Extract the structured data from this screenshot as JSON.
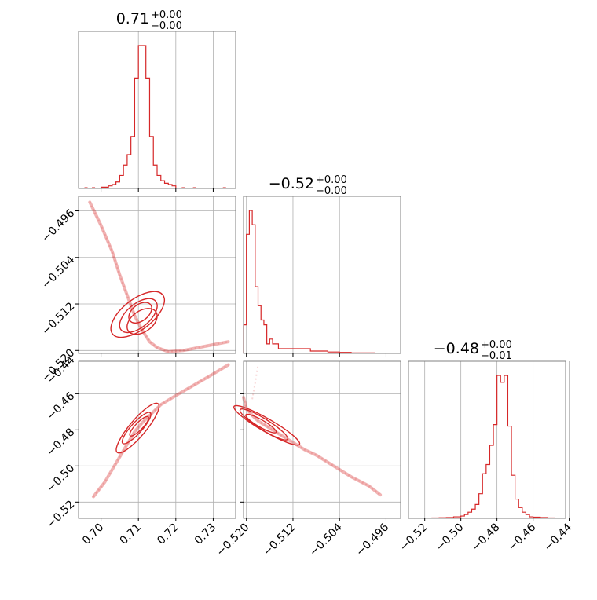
{
  "chart_data": {
    "type": "corner",
    "parameters": [
      {
        "title": {
          "value": "0.71",
          "plus": "+0.00",
          "minus": "−0.00"
        },
        "range": [
          0.694,
          0.736
        ],
        "ticks": [
          0.7,
          0.71,
          0.72,
          0.73
        ],
        "tick_labels": [
          "0.70",
          "0.71",
          "0.72",
          "0.73"
        ]
      },
      {
        "title": {
          "value": "−0.52",
          "plus": "+0.00",
          "minus": "−0.00"
        },
        "range": [
          -0.5205,
          -0.4935
        ],
        "ticks": [
          -0.52,
          -0.512,
          -0.504,
          -0.496
        ],
        "tick_labels": [
          "−0.520",
          "−0.512",
          "−0.504",
          "−0.496"
        ]
      },
      {
        "title": {
          "value": "−0.48",
          "plus": "+0.00",
          "minus": "−0.01"
        },
        "range": [
          -0.529,
          -0.442
        ],
        "ticks": [
          -0.52,
          -0.5,
          -0.48,
          -0.46,
          -0.44
        ],
        "tick_labels": [
          "−0.52",
          "−0.50",
          "−0.48",
          "−0.46",
          "−0.44"
        ]
      }
    ],
    "row_tick_labels": {
      "1": [
        "−0.496",
        "−0.504",
        "−0.512",
        "−0.520"
      ],
      "2": [
        "−0.44",
        "−0.46",
        "−0.48",
        "−0.50",
        "−0.52"
      ]
    },
    "histograms": [
      {
        "bins": [
          0.7,
          0.701,
          0.702,
          0.703,
          0.704,
          0.705,
          0.706,
          0.707,
          0.708,
          0.709,
          0.71,
          0.711,
          0.712,
          0.713,
          0.714,
          0.715,
          0.716,
          0.717,
          0.718,
          0.719,
          0.72
        ],
        "counts": [
          1,
          1,
          2,
          3,
          5,
          10,
          18,
          26,
          40,
          85,
          110,
          110,
          85,
          40,
          18,
          10,
          6,
          4,
          3,
          2
        ],
        "outliers": [
          0.696,
          0.698,
          0.722,
          0.725,
          0.733
        ]
      },
      {
        "bins": [
          -0.5205,
          -0.52,
          -0.5195,
          -0.519,
          -0.5185,
          -0.518,
          -0.5175,
          -0.517,
          -0.5165,
          -0.516,
          -0.5155,
          -0.515,
          -0.5145,
          -0.514,
          -0.5135,
          -0.513,
          -0.5125,
          -0.512,
          -0.5115,
          -0.511,
          -0.5105,
          -0.51,
          -0.509,
          -0.508,
          -0.507,
          -0.506,
          -0.505,
          -0.504,
          -0.502,
          -0.5,
          -0.498
        ],
        "counts": [
          6,
          25,
          30,
          27,
          14,
          10,
          7,
          6,
          2,
          3,
          2,
          2,
          1,
          1,
          1,
          1,
          1,
          1,
          1,
          1,
          1,
          1,
          0.5,
          0.5,
          0.5,
          0.3,
          0.3,
          0.2,
          0.1,
          0.1
        ]
      },
      {
        "bins": [
          -0.52,
          -0.516,
          -0.512,
          -0.508,
          -0.504,
          -0.5,
          -0.498,
          -0.496,
          -0.494,
          -0.492,
          -0.49,
          -0.488,
          -0.486,
          -0.484,
          -0.482,
          -0.48,
          -0.478,
          -0.476,
          -0.474,
          -0.472,
          -0.47,
          -0.468,
          -0.466,
          -0.464,
          -0.462,
          -0.46,
          -0.456,
          -0.452,
          -0.448,
          -0.444
        ],
        "counts": [
          0.3,
          0.5,
          0.8,
          1,
          2,
          3,
          5,
          8,
          12,
          18,
          32,
          58,
          70,
          95,
          122,
          186,
          177,
          186,
          120,
          56,
          25,
          14,
          8,
          5,
          2,
          1.5,
          1,
          0.5,
          0.3
        ]
      }
    ],
    "pair_curves": {
      "1_0": {
        "x": [
          0.697,
          0.7,
          0.703,
          0.705,
          0.707,
          0.709,
          0.711,
          0.713,
          0.715,
          0.718,
          0.722,
          0.726,
          0.73,
          0.734
        ],
        "y": [
          -0.4945,
          -0.4985,
          -0.503,
          -0.507,
          -0.5105,
          -0.514,
          -0.5165,
          -0.5185,
          -0.5195,
          -0.5202,
          -0.52,
          -0.5195,
          -0.519,
          -0.5185
        ]
      },
      "2_0": {
        "x": [
          0.698,
          0.701,
          0.703,
          0.705,
          0.707,
          0.709,
          0.711,
          0.713,
          0.716,
          0.72,
          0.725,
          0.73,
          0.734
        ],
        "y": [
          -0.517,
          -0.509,
          -0.502,
          -0.495,
          -0.488,
          -0.481,
          -0.476,
          -0.472,
          -0.466,
          -0.461,
          -0.455,
          -0.449,
          -0.444
        ]
      },
      "2_1": {
        "x": [
          -0.5205,
          -0.52,
          -0.519,
          -0.518,
          -0.516,
          -0.514,
          -0.512,
          -0.51,
          -0.508,
          -0.505,
          -0.502,
          -0.499,
          -0.497
        ],
        "y": [
          -0.462,
          -0.468,
          -0.472,
          -0.475,
          -0.479,
          -0.483,
          -0.487,
          -0.491,
          -0.494,
          -0.5,
          -0.506,
          -0.511,
          -0.516
        ]
      },
      "2_1_tail": {
        "x": [
          -0.519,
          -0.5185,
          -0.518
        ],
        "y": [
          -0.463,
          -0.454,
          -0.444
        ]
      }
    },
    "contours": {
      "1_0": [
        {
          "cx": 0.7105,
          "cy": -0.5135,
          "rx": 0.0035,
          "ry": 0.0014,
          "rot": -38
        },
        {
          "cx": 0.71,
          "cy": -0.514,
          "rx": 0.006,
          "ry": 0.002,
          "rot": -40
        },
        {
          "cx": 0.7098,
          "cy": -0.5138,
          "rx": 0.0085,
          "ry": 0.0026,
          "rot": -38
        },
        {
          "cx": 0.711,
          "cy": -0.515,
          "rx": 0.0045,
          "ry": 0.0018,
          "rot": -35
        }
      ],
      "2_0": [
        {
          "cx": 0.7095,
          "cy": -0.479,
          "rx": 0.0055,
          "ry": 0.003,
          "rot": -48
        },
        {
          "cx": 0.7098,
          "cy": -0.479,
          "rx": 0.0085,
          "ry": 0.0045,
          "rot": -50
        },
        {
          "cx": 0.7102,
          "cy": -0.478,
          "rx": 0.0035,
          "ry": 0.002,
          "rot": -46
        }
      ],
      "2_1": [
        {
          "cx": -0.5175,
          "cy": -0.4765,
          "rx": 0.003,
          "ry": 0.002,
          "rot": 30
        },
        {
          "cx": -0.517,
          "cy": -0.477,
          "rx": 0.0048,
          "ry": 0.003,
          "rot": 32
        },
        {
          "cx": -0.5165,
          "cy": -0.4775,
          "rx": 0.0065,
          "ry": 0.0036,
          "rot": 30
        }
      ]
    },
    "line_color": "#d62728",
    "grid": true
  }
}
